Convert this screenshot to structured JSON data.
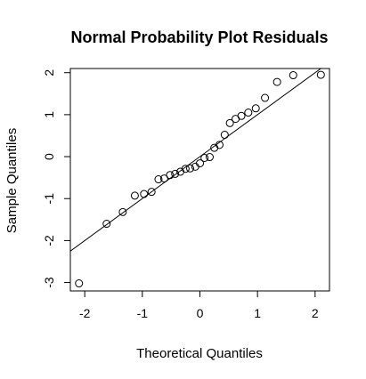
{
  "chart_data": {
    "type": "scatter",
    "title": "Normal Probability Plot Residuals",
    "xlabel": "Theoretical Quantiles",
    "ylabel": "Sample Quantiles",
    "xlim": [
      -2.25,
      2.25
    ],
    "ylim": [
      -3.2,
      2.1
    ],
    "x_ticks": [
      -2,
      -1,
      0,
      1,
      2
    ],
    "x_tick_labels": [
      "-2",
      "-1",
      "0",
      "1",
      "2"
    ],
    "y_ticks": [
      -3,
      -2,
      -1,
      0,
      1,
      2
    ],
    "y_tick_labels": [
      "-3",
      "-2",
      "-1",
      "0",
      "1",
      "2"
    ],
    "grid": false,
    "reference_line": {
      "slope": 1.0,
      "intercept": 0.0
    },
    "points": [
      {
        "x": -2.1,
        "y": -3.02
      },
      {
        "x": -1.62,
        "y": -1.6
      },
      {
        "x": -1.34,
        "y": -1.32
      },
      {
        "x": -1.13,
        "y": -0.93
      },
      {
        "x": -0.97,
        "y": -0.89
      },
      {
        "x": -0.84,
        "y": -0.84
      },
      {
        "x": -0.72,
        "y": -0.54
      },
      {
        "x": -0.62,
        "y": -0.52
      },
      {
        "x": -0.52,
        "y": -0.44
      },
      {
        "x": -0.43,
        "y": -0.41
      },
      {
        "x": -0.34,
        "y": -0.36
      },
      {
        "x": -0.25,
        "y": -0.29
      },
      {
        "x": -0.17,
        "y": -0.28
      },
      {
        "x": -0.08,
        "y": -0.24
      },
      {
        "x": 0.0,
        "y": -0.16
      },
      {
        "x": 0.08,
        "y": -0.03
      },
      {
        "x": 0.17,
        "y": -0.01
      },
      {
        "x": 0.25,
        "y": 0.21
      },
      {
        "x": 0.34,
        "y": 0.28
      },
      {
        "x": 0.43,
        "y": 0.52
      },
      {
        "x": 0.52,
        "y": 0.8
      },
      {
        "x": 0.62,
        "y": 0.9
      },
      {
        "x": 0.72,
        "y": 0.97
      },
      {
        "x": 0.84,
        "y": 1.05
      },
      {
        "x": 0.97,
        "y": 1.15
      },
      {
        "x": 1.13,
        "y": 1.4
      },
      {
        "x": 1.34,
        "y": 1.78
      },
      {
        "x": 1.62,
        "y": 1.94
      },
      {
        "x": 2.1,
        "y": 1.95
      }
    ]
  }
}
